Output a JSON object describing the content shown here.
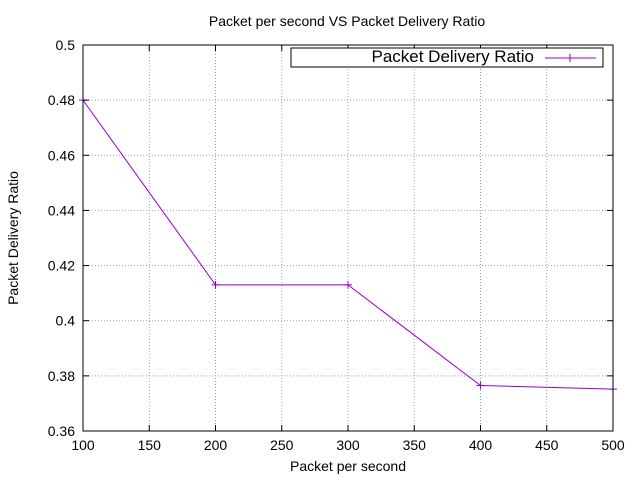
{
  "chart_data": {
    "type": "line",
    "title": "Packet per second VS Packet Delivery Ratio",
    "xlabel": "Packet per second",
    "ylabel": "Packet Delivery Ratio",
    "xlim": [
      100,
      500
    ],
    "ylim": [
      0.36,
      0.5
    ],
    "xticks": [
      100,
      150,
      200,
      250,
      300,
      350,
      400,
      450,
      500
    ],
    "xtick_labels": [
      "100",
      "150",
      "200",
      "250",
      "300",
      "350",
      "400",
      "450",
      "500"
    ],
    "yticks": [
      0.36,
      0.38,
      0.4,
      0.42,
      0.44,
      0.46,
      0.48,
      0.5
    ],
    "ytick_labels": [
      "0.36",
      "0.38",
      "0.4",
      "0.42",
      "0.44",
      "0.46",
      "0.48",
      "0.5"
    ],
    "grid": true,
    "legend_position": "top-right",
    "series": [
      {
        "name": "Packet Delivery Ratio",
        "color": "#9400d3",
        "marker": "plus",
        "x": [
          100,
          200,
          300,
          400,
          500
        ],
        "y": [
          0.48,
          0.413,
          0.413,
          0.3765,
          0.3752
        ]
      }
    ]
  }
}
